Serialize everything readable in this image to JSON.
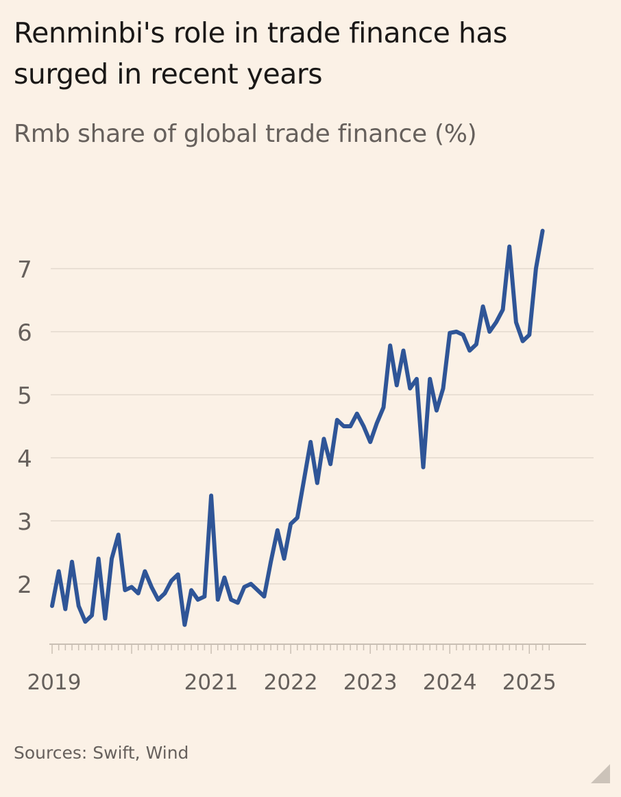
{
  "title": "Renminbi's role in trade finance has surged in recent years",
  "subtitle": "Rmb share of global trade finance (%)",
  "source": "Sources: Swift, Wind",
  "colors": {
    "background": "#fbf1e6",
    "line": "#2f5597",
    "grid": "#e3d9ce",
    "tick_text": "#66605c"
  },
  "chart_data": {
    "type": "line",
    "title": "Renminbi's role in trade finance has surged in recent years",
    "ylabel": "Rmb share of global trade finance (%)",
    "xlabel": "",
    "x_range": [
      2019.0,
      2025.67
    ],
    "ylim": [
      1.0,
      7.8
    ],
    "y_ticks": [
      2,
      3,
      4,
      5,
      6,
      7
    ],
    "x_tick_labels": [
      {
        "label": "2019",
        "value": 2019
      },
      {
        "label": "2021",
        "value": 2021
      },
      {
        "label": "2022",
        "value": 2022
      },
      {
        "label": "2023",
        "value": 2023
      },
      {
        "label": "2024",
        "value": 2024
      },
      {
        "label": "2025",
        "value": 2025
      }
    ],
    "grid": true,
    "series": [
      {
        "name": "Rmb share of global trade finance (%)",
        "start": 2019.0,
        "step_months": 1,
        "values": [
          1.65,
          2.2,
          1.6,
          2.35,
          1.65,
          1.4,
          1.5,
          2.4,
          1.45,
          2.4,
          2.78,
          1.9,
          1.95,
          1.85,
          2.2,
          1.95,
          1.75,
          1.85,
          2.05,
          2.15,
          1.35,
          1.9,
          1.75,
          1.8,
          3.4,
          1.75,
          2.1,
          1.75,
          1.7,
          1.95,
          2.0,
          1.9,
          1.8,
          2.35,
          2.85,
          2.4,
          2.95,
          3.05,
          3.65,
          4.25,
          3.6,
          4.3,
          3.9,
          4.6,
          4.5,
          4.5,
          4.7,
          4.5,
          4.25,
          4.55,
          4.8,
          5.78,
          5.15,
          5.7,
          5.1,
          5.25,
          3.85,
          5.25,
          4.75,
          5.1,
          5.98,
          6.0,
          5.95,
          5.7,
          5.8,
          6.4,
          6.0,
          6.15,
          6.35,
          7.35,
          6.15,
          5.85,
          5.95,
          7.0,
          7.6
        ]
      }
    ]
  }
}
